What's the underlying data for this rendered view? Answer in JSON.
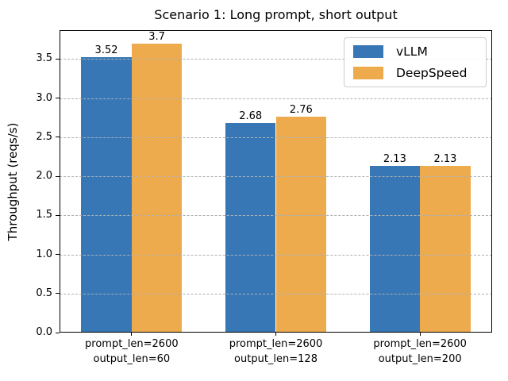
{
  "chart_data": {
    "type": "bar",
    "title": "Scenario 1: Long prompt, short output",
    "ylabel": "Throughput (reqs/s)",
    "xlabel": "",
    "categories": [
      "prompt_len=2600\noutput_len=60",
      "prompt_len=2600\noutput_len=128",
      "prompt_len=2600\noutput_len=200"
    ],
    "series": [
      {
        "name": "vLLM",
        "color": "#3777b5",
        "values": [
          3.52,
          2.68,
          2.13
        ]
      },
      {
        "name": "DeepSpeed",
        "color": "#eeab4d",
        "values": [
          3.7,
          2.76,
          2.13
        ]
      }
    ],
    "yticks": [
      0.0,
      0.5,
      1.0,
      1.5,
      2.0,
      2.5,
      3.0,
      3.5
    ],
    "ylim": [
      0,
      3.87
    ],
    "bar_width_fraction": 0.35,
    "grid": {
      "axis": "y",
      "style": "dashed",
      "color": "#b0b0b0"
    },
    "legend_position": "upper-right"
  }
}
